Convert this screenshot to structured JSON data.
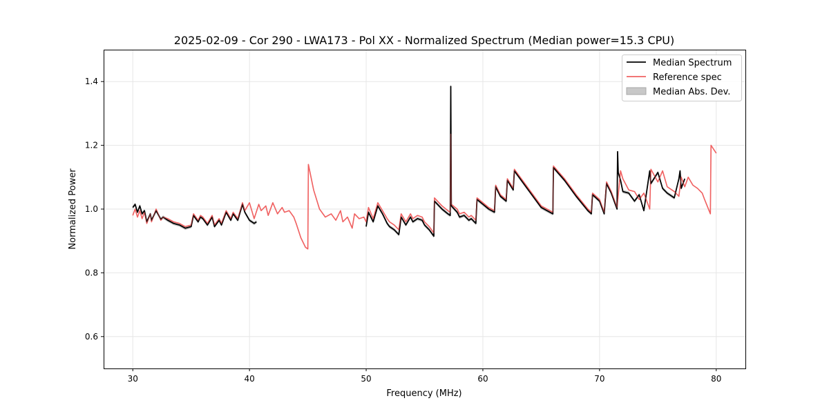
{
  "chart_data": {
    "type": "line",
    "title": "2025-02-09 - Cor 290 - LWA173 - Pol XX - Normalized Spectrum (Median power=15.3 CPU)",
    "xlabel": "Frequency (MHz)",
    "ylabel": "Normalized Power",
    "xlim": [
      27.5,
      82.5
    ],
    "ylim": [
      0.5,
      1.5
    ],
    "xticks": [
      30,
      40,
      50,
      60,
      70,
      80
    ],
    "yticks": [
      0.6,
      0.8,
      1.0,
      1.2,
      1.4
    ],
    "xtick_labels": [
      "30",
      "40",
      "50",
      "60",
      "70",
      "80"
    ],
    "ytick_labels": [
      "0.6",
      "0.8",
      "1.0",
      "1.2",
      "1.4"
    ],
    "grid": true,
    "legend_position": "top-right",
    "legend": [
      "Median Spectrum",
      "Reference spec",
      "Median Abs. Dev."
    ],
    "colors": {
      "median": "#000000",
      "reference": "#f06262",
      "mad_fill": "#c8c8c8",
      "grid": "#e6e6e6"
    },
    "series": [
      {
        "name": "Reference spec",
        "x": [
          30.0,
          30.2,
          30.4,
          30.6,
          30.8,
          31.0,
          31.2,
          31.5,
          31.6,
          32.0,
          32.4,
          32.6,
          33.0,
          33.5,
          34.0,
          34.5,
          35.0,
          35.2,
          35.6,
          35.8,
          36.0,
          36.4,
          36.8,
          37.0,
          37.4,
          37.6,
          38.0,
          38.4,
          38.6,
          39.0,
          39.4,
          39.6,
          40.0,
          40.4,
          40.8,
          41.0,
          41.4,
          41.6,
          42.0,
          42.4,
          42.8,
          43.0,
          43.4,
          43.8,
          44.0,
          44.4,
          44.8,
          45.0,
          45.05,
          45.5,
          46.0,
          46.5,
          47.0,
          47.4,
          47.8,
          48.0,
          48.4,
          48.8,
          49.0,
          49.4,
          49.8,
          50.0,
          50.2,
          50.6,
          51.0,
          51.4,
          51.8,
          52.0,
          52.4,
          52.8,
          53.0,
          53.4,
          53.8,
          54.0,
          54.4,
          54.8,
          55.0,
          55.4,
          55.8,
          55.85,
          56.5,
          57.0,
          57.2,
          57.25,
          57.3,
          57.8,
          58.0,
          58.4,
          58.8,
          59.0,
          59.4,
          59.5,
          60.0,
          60.5,
          61.0,
          61.1,
          61.5,
          62.0,
          62.1,
          62.6,
          62.7,
          63.0,
          64.0,
          65.0,
          66.0,
          66.05,
          67.0,
          68.0,
          69.0,
          69.3,
          69.4,
          70.0,
          70.4,
          70.6,
          71.0,
          71.5,
          71.8,
          72.0,
          72.5,
          73.0,
          73.4,
          73.8,
          74.3,
          74.4,
          75.0,
          75.4,
          75.8,
          76.4,
          76.8,
          77.0,
          77.3,
          77.6,
          78.0,
          78.4,
          78.8,
          79.0,
          79.5,
          79.55,
          80.0
        ],
        "values": [
          0.98,
          1.0,
          0.975,
          0.995,
          0.97,
          0.99,
          0.955,
          0.985,
          0.96,
          1.0,
          0.965,
          0.975,
          0.97,
          0.96,
          0.955,
          0.945,
          0.95,
          0.985,
          0.965,
          0.98,
          0.975,
          0.955,
          0.98,
          0.95,
          0.97,
          0.955,
          0.995,
          0.97,
          0.99,
          0.97,
          1.02,
          0.995,
          1.02,
          0.97,
          1.015,
          0.995,
          1.01,
          0.98,
          1.02,
          0.985,
          1.005,
          0.99,
          0.995,
          0.975,
          0.955,
          0.91,
          0.88,
          0.875,
          1.14,
          1.06,
          1.0,
          0.975,
          0.985,
          0.965,
          0.995,
          0.96,
          0.975,
          0.94,
          0.985,
          0.97,
          0.975,
          0.96,
          1.005,
          0.97,
          1.02,
          0.995,
          0.97,
          0.96,
          0.95,
          0.935,
          0.985,
          0.96,
          0.985,
          0.97,
          0.98,
          0.975,
          0.96,
          0.945,
          0.925,
          1.035,
          1.01,
          0.995,
          0.99,
          1.235,
          1.015,
          1.0,
          0.985,
          0.99,
          0.975,
          0.98,
          0.965,
          1.035,
          1.02,
          1.005,
          0.995,
          1.075,
          1.045,
          1.03,
          1.095,
          1.065,
          1.125,
          1.11,
          1.06,
          1.01,
          0.99,
          1.135,
          1.095,
          1.045,
          1.0,
          0.99,
          1.05,
          1.03,
          0.99,
          1.085,
          1.055,
          1.005,
          1.12,
          1.095,
          1.06,
          1.055,
          1.03,
          1.05,
          1.0,
          1.125,
          1.085,
          1.12,
          1.07,
          1.055,
          1.04,
          1.1,
          1.07,
          1.1,
          1.075,
          1.065,
          1.05,
          1.03,
          0.985,
          1.2,
          1.175
        ]
      },
      {
        "name": "Median Spectrum",
        "x": [
          30.0,
          30.2,
          30.4,
          30.6,
          30.8,
          31.0,
          31.2,
          31.5,
          31.6,
          32.0,
          32.4,
          32.6,
          33.0,
          33.5,
          34.0,
          34.5,
          35.0,
          35.2,
          35.6,
          35.8,
          36.0,
          36.4,
          36.8,
          37.0,
          37.4,
          37.6,
          38.0,
          38.4,
          38.6,
          39.0,
          39.4,
          39.6,
          40.0,
          40.4,
          40.6,
          null,
          50.0,
          50.2,
          50.6,
          51.0,
          51.4,
          51.8,
          52.0,
          52.4,
          52.8,
          53.0,
          53.4,
          53.8,
          54.0,
          54.4,
          54.8,
          55.0,
          55.4,
          55.8,
          55.85,
          56.5,
          57.0,
          57.2,
          57.25,
          57.3,
          57.8,
          58.0,
          58.4,
          58.8,
          59.0,
          59.4,
          59.5,
          60.0,
          60.5,
          61.0,
          61.1,
          61.5,
          62.0,
          62.1,
          62.6,
          62.7,
          63.0,
          64.0,
          65.0,
          66.0,
          66.05,
          67.0,
          68.0,
          69.0,
          69.3,
          69.4,
          70.0,
          70.4,
          70.6,
          71.0,
          71.5,
          71.55,
          71.6,
          71.8,
          72.0,
          72.5,
          73.0,
          73.4,
          73.8,
          74.3,
          74.4,
          75.0,
          75.4,
          75.8,
          76.4,
          76.8,
          76.9,
          77.0,
          77.3
        ],
        "values": [
          1.005,
          1.015,
          0.99,
          1.01,
          0.985,
          0.995,
          0.96,
          0.985,
          0.965,
          0.995,
          0.968,
          0.975,
          0.965,
          0.955,
          0.95,
          0.94,
          0.945,
          0.98,
          0.96,
          0.975,
          0.97,
          0.95,
          0.975,
          0.945,
          0.965,
          0.95,
          0.99,
          0.965,
          0.985,
          0.965,
          1.015,
          0.99,
          0.965,
          0.955,
          0.96,
          null,
          0.945,
          0.99,
          0.96,
          1.01,
          0.985,
          0.955,
          0.945,
          0.935,
          0.92,
          0.975,
          0.95,
          0.975,
          0.96,
          0.97,
          0.965,
          0.95,
          0.935,
          0.915,
          1.025,
          1.0,
          0.985,
          0.98,
          1.385,
          1.01,
          0.99,
          0.975,
          0.98,
          0.965,
          0.97,
          0.955,
          1.03,
          1.015,
          1.0,
          0.99,
          1.07,
          1.04,
          1.025,
          1.09,
          1.06,
          1.12,
          1.105,
          1.055,
          1.005,
          0.985,
          1.13,
          1.09,
          1.04,
          0.995,
          0.985,
          1.045,
          1.025,
          0.985,
          1.08,
          1.05,
          1.0,
          1.18,
          1.115,
          1.09,
          1.055,
          1.05,
          1.025,
          1.045,
          0.995,
          1.12,
          1.08,
          1.115,
          1.065,
          1.05,
          1.035,
          1.095,
          1.12,
          1.065,
          1.095
        ]
      }
    ]
  }
}
